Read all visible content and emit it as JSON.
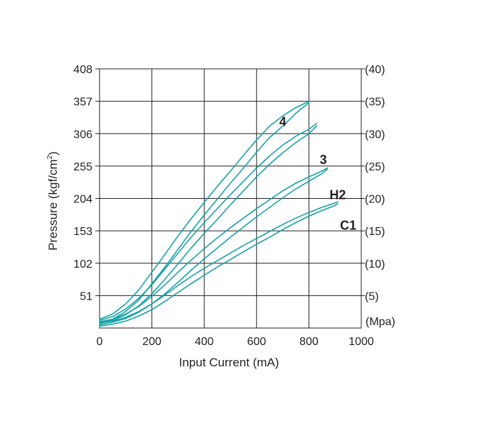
{
  "chart_data": {
    "type": "line",
    "xlabel": "Input Current  (mA)",
    "ylabel": "Pressure  (kgf/cm",
    "ylabel_sup": "2",
    "ylabel_close": ")",
    "y2label": "(Mpa)",
    "xlim": [
      0,
      1000
    ],
    "ylim": [
      0,
      408
    ],
    "x_ticks": [
      0,
      200,
      400,
      600,
      800,
      1000
    ],
    "x_tick_labels": [
      "0",
      "200",
      "400",
      "600",
      "800",
      "1000"
    ],
    "y_ticks": [
      51,
      102,
      153,
      204,
      255,
      306,
      357,
      408
    ],
    "y_tick_labels": [
      "51",
      "102",
      "153",
      "204",
      "255",
      "306",
      "357",
      "408"
    ],
    "y2_tick_labels": [
      "(5)",
      "(10)",
      "(15)",
      "(20)",
      "(25)",
      "(30)",
      "(35)",
      "(40)"
    ],
    "grid": true,
    "line_color": "#17a2a6",
    "series": [
      {
        "name": "4",
        "upper": [
          [
            0,
            14
          ],
          [
            50,
            22
          ],
          [
            100,
            38
          ],
          [
            150,
            60
          ],
          [
            200,
            88
          ],
          [
            250,
            116
          ],
          [
            300,
            145
          ],
          [
            350,
            172
          ],
          [
            400,
            198
          ],
          [
            450,
            223
          ],
          [
            500,
            247
          ],
          [
            550,
            272
          ],
          [
            600,
            296
          ],
          [
            650,
            318
          ],
          [
            700,
            334
          ],
          [
            750,
            347
          ],
          [
            800,
            357
          ]
        ],
        "lower": [
          [
            0,
            8
          ],
          [
            50,
            14
          ],
          [
            100,
            26
          ],
          [
            150,
            44
          ],
          [
            200,
            70
          ],
          [
            250,
            96
          ],
          [
            300,
            124
          ],
          [
            350,
            152
          ],
          [
            400,
            178
          ],
          [
            450,
            203
          ],
          [
            500,
            228
          ],
          [
            550,
            252
          ],
          [
            600,
            277
          ],
          [
            650,
            300
          ],
          [
            700,
            318
          ],
          [
            750,
            338
          ],
          [
            800,
            355
          ]
        ]
      },
      {
        "name": "3",
        "upper": [
          [
            0,
            12
          ],
          [
            50,
            18
          ],
          [
            100,
            30
          ],
          [
            150,
            47
          ],
          [
            200,
            68
          ],
          [
            250,
            93
          ],
          [
            300,
            118
          ],
          [
            350,
            143
          ],
          [
            400,
            166
          ],
          [
            450,
            188
          ],
          [
            500,
            210
          ],
          [
            550,
            231
          ],
          [
            600,
            252
          ],
          [
            650,
            271
          ],
          [
            700,
            288
          ],
          [
            750,
            302
          ],
          [
            800,
            313
          ],
          [
            830,
            322
          ]
        ],
        "lower": [
          [
            0,
            7
          ],
          [
            50,
            12
          ],
          [
            100,
            21
          ],
          [
            150,
            35
          ],
          [
            200,
            54
          ],
          [
            250,
            77
          ],
          [
            300,
            101
          ],
          [
            350,
            126
          ],
          [
            400,
            149
          ],
          [
            450,
            171
          ],
          [
            500,
            194
          ],
          [
            550,
            216
          ],
          [
            600,
            238
          ],
          [
            650,
            258
          ],
          [
            700,
            276
          ],
          [
            750,
            292
          ],
          [
            800,
            306
          ],
          [
            830,
            318
          ]
        ]
      },
      {
        "name": "H2",
        "upper": [
          [
            0,
            10
          ],
          [
            50,
            14
          ],
          [
            100,
            22
          ],
          [
            150,
            34
          ],
          [
            200,
            50
          ],
          [
            250,
            68
          ],
          [
            300,
            88
          ],
          [
            350,
            107
          ],
          [
            400,
            125
          ],
          [
            450,
            142
          ],
          [
            500,
            158
          ],
          [
            550,
            173
          ],
          [
            600,
            188
          ],
          [
            650,
            202
          ],
          [
            700,
            216
          ],
          [
            750,
            228
          ],
          [
            800,
            238
          ],
          [
            850,
            247
          ],
          [
            870,
            252
          ]
        ],
        "lower": [
          [
            0,
            5
          ],
          [
            50,
            9
          ],
          [
            100,
            15
          ],
          [
            150,
            25
          ],
          [
            200,
            38
          ],
          [
            250,
            54
          ],
          [
            300,
            72
          ],
          [
            350,
            91
          ],
          [
            400,
            109
          ],
          [
            450,
            126
          ],
          [
            500,
            143
          ],
          [
            550,
            159
          ],
          [
            600,
            175
          ],
          [
            650,
            190
          ],
          [
            700,
            205
          ],
          [
            750,
            219
          ],
          [
            800,
            231
          ],
          [
            850,
            243
          ],
          [
            870,
            250
          ]
        ]
      },
      {
        "name": "C1",
        "upper": [
          [
            0,
            8
          ],
          [
            50,
            11
          ],
          [
            100,
            17
          ],
          [
            150,
            26
          ],
          [
            200,
            38
          ],
          [
            250,
            52
          ],
          [
            300,
            67
          ],
          [
            350,
            81
          ],
          [
            400,
            94
          ],
          [
            450,
            106
          ],
          [
            500,
            118
          ],
          [
            550,
            130
          ],
          [
            600,
            141
          ],
          [
            650,
            152
          ],
          [
            700,
            163
          ],
          [
            750,
            173
          ],
          [
            800,
            182
          ],
          [
            850,
            190
          ],
          [
            900,
            197
          ],
          [
            910,
            199
          ]
        ],
        "lower": [
          [
            0,
            3
          ],
          [
            50,
            6
          ],
          [
            100,
            11
          ],
          [
            150,
            19
          ],
          [
            200,
            29
          ],
          [
            250,
            42
          ],
          [
            300,
            56
          ],
          [
            350,
            70
          ],
          [
            400,
            83
          ],
          [
            450,
            96
          ],
          [
            500,
            108
          ],
          [
            550,
            120
          ],
          [
            600,
            132
          ],
          [
            650,
            143
          ],
          [
            700,
            155
          ],
          [
            750,
            166
          ],
          [
            800,
            176
          ],
          [
            850,
            185
          ],
          [
            900,
            193
          ],
          [
            910,
            196
          ]
        ]
      }
    ],
    "series_labels": [
      {
        "text": "4",
        "x": 700,
        "y": 318
      },
      {
        "text": "3",
        "x": 855,
        "y": 258
      },
      {
        "text": "H2",
        "x": 910,
        "y": 203
      },
      {
        "text": "C1",
        "x": 950,
        "y": 155
      }
    ]
  }
}
